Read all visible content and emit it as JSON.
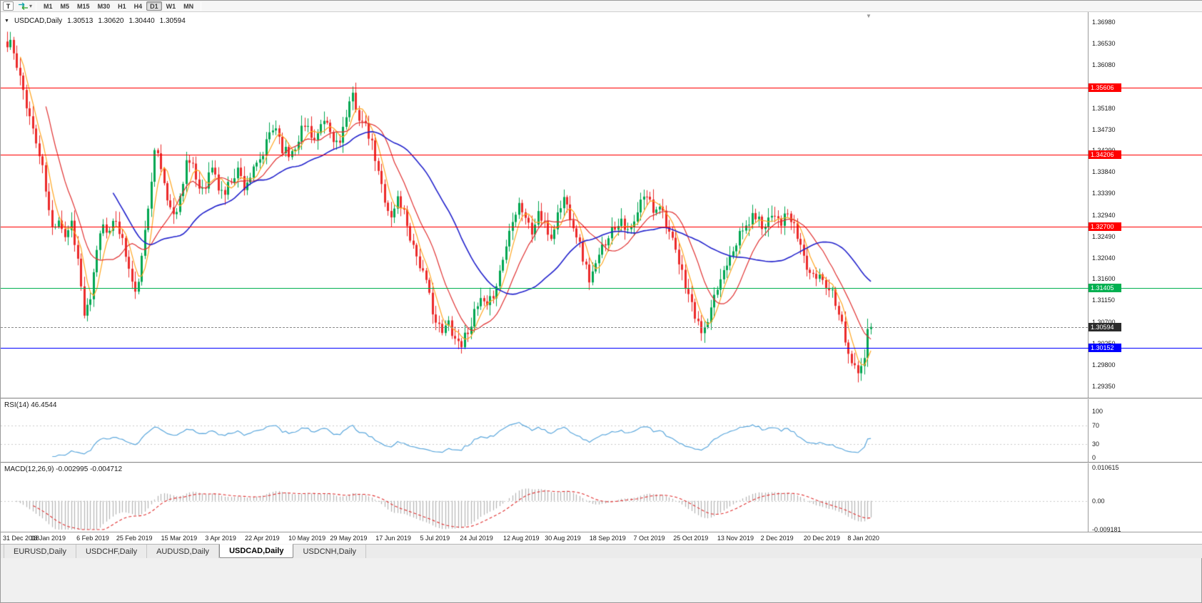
{
  "toolbar": {
    "templates_button": "T",
    "timeframes": [
      "M1",
      "M5",
      "M15",
      "M30",
      "H1",
      "H4",
      "D1",
      "W1",
      "MN"
    ],
    "active_timeframe": "D1"
  },
  "chart": {
    "symbol_label": "USDCAD,Daily",
    "ohlc": {
      "open": "1.30513",
      "high": "1.30620",
      "low": "1.30440",
      "close": "1.30594"
    }
  },
  "rsi_panel": {
    "label": "RSI(14) 46.4544",
    "value": 46.4544,
    "axis_labels": [
      "100",
      "70",
      "30",
      "0"
    ],
    "line_color": "#5BA7DC"
  },
  "macd_panel": {
    "label": "MACD(12,26,9) -0.002995 -0.004712",
    "macd_value": -0.002995,
    "signal_value": -0.004712,
    "axis_labels": [
      "0.010615",
      "0.00",
      "-0.009181"
    ]
  },
  "tabs": {
    "items": [
      "EURUSD,Daily",
      "USDCHF,Daily",
      "AUDUSD,Daily",
      "USDCAD,Daily",
      "USDCNH,Daily"
    ],
    "active": "USDCAD,Daily"
  },
  "chart_data": {
    "type": "candlestick",
    "symbol": "USDCAD",
    "timeframe": "Daily",
    "title": "USDCAD,Daily 1.30513 1.30620 1.30440 1.30594",
    "y_range": [
      1.2935,
      1.3698
    ],
    "y_axis_labels": [
      "1.36980",
      "1.36530",
      "1.36080",
      "1.35630",
      "1.35180",
      "1.34730",
      "1.34290",
      "1.33840",
      "1.33390",
      "1.32940",
      "1.32490",
      "1.32040",
      "1.31600",
      "1.31150",
      "1.30700",
      "1.30250",
      "1.29800",
      "1.29350"
    ],
    "x_labels": [
      "31 Dec 2018",
      "18 Jan 2019",
      "6 Feb 2019",
      "25 Feb 2019",
      "15 Mar 2019",
      "3 Apr 2019",
      "22 Apr 2019",
      "10 May 2019",
      "29 May 2019",
      "17 Jun 2019",
      "5 Jul 2019",
      "24 Jul 2019",
      "12 Aug 2019",
      "30 Aug 2019",
      "18 Sep 2019",
      "7 Oct 2019",
      "25 Oct 2019",
      "13 Nov 2019",
      "2 Dec 2019",
      "20 Dec 2019",
      "8 Jan 2020"
    ],
    "bars_total": 271,
    "candle_colors": {
      "up": "#00A651",
      "down": "#EB2A2A"
    },
    "moving_averages": [
      {
        "name": "fast-ma",
        "period": 5,
        "color": "#FFA620"
      },
      {
        "name": "medium-ma",
        "period": 13,
        "color": "#E03030"
      },
      {
        "name": "slow-ma",
        "period": 34,
        "color": "#2222CC"
      }
    ],
    "levels": [
      {
        "label": "1.35606",
        "price": 1.35606,
        "color": "#FF0000"
      },
      {
        "label": "1.34206",
        "price": 1.34206,
        "color": "#FF0000"
      },
      {
        "label": "1.32700",
        "price": 1.327,
        "color": "#FF0000"
      },
      {
        "label": "1.31405",
        "price": 1.31405,
        "color": "#00B050"
      },
      {
        "label": "1.30152",
        "price": 1.30152,
        "color": "#0000FF"
      }
    ],
    "current_price": {
      "label": "1.30594",
      "price": 1.30594,
      "box_color": "#2B2B2B"
    },
    "rsi": {
      "period": 14,
      "current": 46.4544,
      "guide_levels": [
        70,
        30
      ]
    },
    "macd": {
      "fast": 12,
      "slow": 26,
      "signal": 9,
      "current": -0.002995,
      "signal_current": -0.004712,
      "axis_max": 0.010615,
      "axis_min": -0.009181
    },
    "price_keypoints": [
      [
        0,
        1.3645
      ],
      [
        1,
        1.366
      ],
      [
        3,
        1.36
      ],
      [
        5,
        1.3555
      ],
      [
        7,
        1.35
      ],
      [
        9,
        1.3445
      ],
      [
        11,
        1.339
      ],
      [
        13,
        1.33
      ],
      [
        14,
        1.3265
      ],
      [
        16,
        1.329
      ],
      [
        18,
        1.325
      ],
      [
        20,
        1.328
      ],
      [
        22,
        1.32
      ],
      [
        24,
        1.3085
      ],
      [
        26,
        1.311
      ],
      [
        28,
        1.3225
      ],
      [
        30,
        1.328
      ],
      [
        32,
        1.3255
      ],
      [
        34,
        1.3285
      ],
      [
        36,
        1.324
      ],
      [
        38,
        1.318
      ],
      [
        40,
        1.3125
      ],
      [
        42,
        1.32
      ],
      [
        44,
        1.331
      ],
      [
        46,
        1.344
      ],
      [
        48,
        1.339
      ],
      [
        50,
        1.333
      ],
      [
        52,
        1.329
      ],
      [
        54,
        1.333
      ],
      [
        56,
        1.341
      ],
      [
        58,
        1.339
      ],
      [
        60,
        1.335
      ],
      [
        62,
        1.336
      ],
      [
        64,
        1.3395
      ],
      [
        66,
        1.335
      ],
      [
        68,
        1.334
      ],
      [
        70,
        1.337
      ],
      [
        72,
        1.339
      ],
      [
        74,
        1.3355
      ],
      [
        76,
        1.3375
      ],
      [
        78,
        1.3395
      ],
      [
        80,
        1.342
      ],
      [
        82,
        1.3465
      ],
      [
        84,
        1.348
      ],
      [
        86,
        1.3435
      ],
      [
        88,
        1.342
      ],
      [
        90,
        1.344
      ],
      [
        92,
        1.3475
      ],
      [
        94,
        1.348
      ],
      [
        96,
        1.345
      ],
      [
        98,
        1.3475
      ],
      [
        100,
        1.3485
      ],
      [
        102,
        1.3445
      ],
      [
        104,
        1.3455
      ],
      [
        106,
        1.3495
      ],
      [
        108,
        1.3545
      ],
      [
        110,
        1.35
      ],
      [
        112,
        1.3475
      ],
      [
        114,
        1.344
      ],
      [
        116,
        1.338
      ],
      [
        118,
        1.333
      ],
      [
        120,
        1.3285
      ],
      [
        122,
        1.333
      ],
      [
        124,
        1.33
      ],
      [
        126,
        1.325
      ],
      [
        128,
        1.321
      ],
      [
        130,
        1.317
      ],
      [
        132,
        1.3125
      ],
      [
        134,
        1.307
      ],
      [
        136,
        1.3045
      ],
      [
        138,
        1.307
      ],
      [
        140,
        1.3035
      ],
      [
        142,
        1.3025
      ],
      [
        144,
        1.3055
      ],
      [
        146,
        1.3085
      ],
      [
        148,
        1.3115
      ],
      [
        150,
        1.3095
      ],
      [
        152,
        1.313
      ],
      [
        154,
        1.3175
      ],
      [
        156,
        1.323
      ],
      [
        158,
        1.329
      ],
      [
        160,
        1.332
      ],
      [
        162,
        1.329
      ],
      [
        164,
        1.3255
      ],
      [
        166,
        1.33
      ],
      [
        168,
        1.327
      ],
      [
        170,
        1.3245
      ],
      [
        172,
        1.3295
      ],
      [
        174,
        1.333
      ],
      [
        176,
        1.3295
      ],
      [
        178,
        1.3255
      ],
      [
        180,
        1.3205
      ],
      [
        182,
        1.316
      ],
      [
        184,
        1.3185
      ],
      [
        186,
        1.3225
      ],
      [
        188,
        1.3255
      ],
      [
        190,
        1.327
      ],
      [
        192,
        1.329
      ],
      [
        194,
        1.3255
      ],
      [
        196,
        1.3275
      ],
      [
        198,
        1.332
      ],
      [
        200,
        1.3335
      ],
      [
        202,
        1.3305
      ],
      [
        204,
        1.332
      ],
      [
        206,
        1.328
      ],
      [
        208,
        1.3235
      ],
      [
        210,
        1.319
      ],
      [
        212,
        1.315
      ],
      [
        214,
        1.3105
      ],
      [
        216,
        1.306
      ],
      [
        218,
        1.305
      ],
      [
        220,
        1.309
      ],
      [
        222,
        1.314
      ],
      [
        224,
        1.318
      ],
      [
        226,
        1.3215
      ],
      [
        228,
        1.324
      ],
      [
        230,
        1.326
      ],
      [
        232,
        1.328
      ],
      [
        234,
        1.3295
      ],
      [
        236,
        1.327
      ],
      [
        238,
        1.329
      ],
      [
        240,
        1.33
      ],
      [
        242,
        1.328
      ],
      [
        244,
        1.3295
      ],
      [
        246,
        1.3265
      ],
      [
        248,
        1.323
      ],
      [
        250,
        1.3185
      ],
      [
        252,
        1.316
      ],
      [
        254,
        1.317
      ],
      [
        256,
        1.315
      ],
      [
        258,
        1.3135
      ],
      [
        260,
        1.3095
      ],
      [
        262,
        1.3035
      ],
      [
        264,
        1.2985
      ],
      [
        266,
        1.296
      ],
      [
        268,
        1.299
      ],
      [
        269,
        1.3058
      ],
      [
        270,
        1.3059
      ]
    ]
  }
}
